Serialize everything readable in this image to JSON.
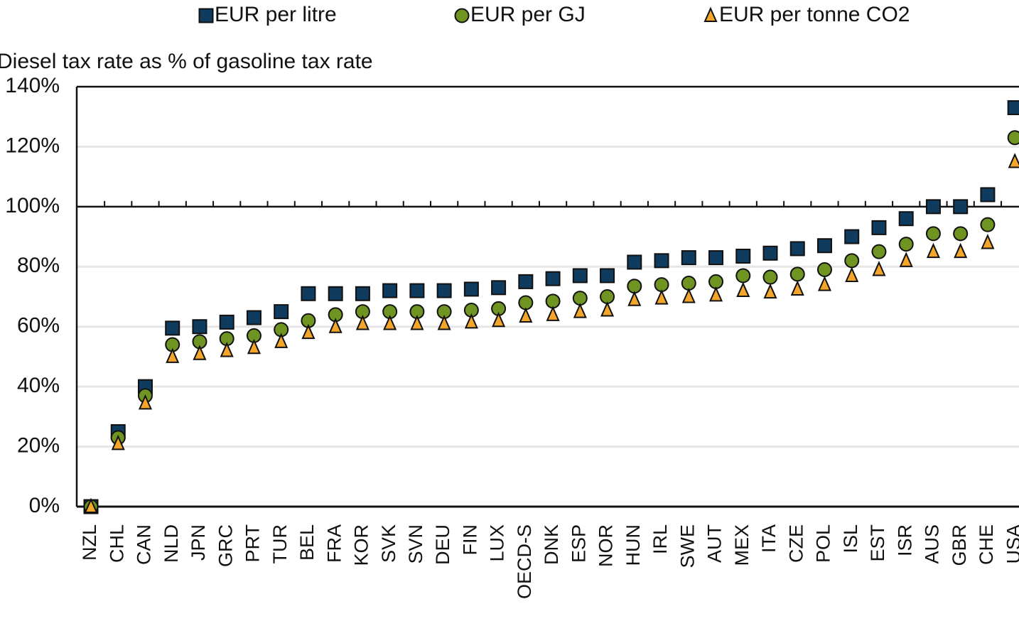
{
  "chart_data": {
    "type": "scatter",
    "ylabel": "Diesel tax rate as % of gasoline tax rate",
    "categories": [
      "NZL",
      "CHL",
      "CAN",
      "NLD",
      "JPN",
      "GRC",
      "PRT",
      "TUR",
      "BEL",
      "FRA",
      "KOR",
      "SVK",
      "SVN",
      "DEU",
      "FIN",
      "LUX",
      "OECD-S",
      "DNK",
      "ESP",
      "NOR",
      "HUN",
      "IRL",
      "SWE",
      "AUT",
      "MEX",
      "ITA",
      "CZE",
      "POL",
      "ISL",
      "EST",
      "ISR",
      "AUS",
      "GBR",
      "CHE",
      "USA"
    ],
    "series": [
      {
        "name": "EUR per litre",
        "color": "#0f3b5f",
        "marker": "square",
        "values": [
          0,
          25,
          40,
          59.5,
          60,
          61.5,
          63,
          65,
          71,
          71,
          71,
          72,
          72,
          72,
          72.5,
          73,
          75,
          76,
          77,
          77,
          81.5,
          82,
          83,
          83,
          83.5,
          84.5,
          86,
          87,
          90,
          93,
          96,
          100,
          100,
          104,
          133
        ]
      },
      {
        "name": "EUR per GJ",
        "color": "#6f9421",
        "marker": "circle",
        "values": [
          0,
          23,
          37,
          54,
          55,
          56,
          57,
          59,
          62,
          64,
          65,
          65,
          65,
          65,
          65.5,
          66,
          68,
          68.5,
          69.5,
          70,
          73.5,
          74,
          74.5,
          75,
          77,
          76.5,
          77.5,
          79,
          82,
          85,
          87.5,
          91,
          91,
          94,
          123
        ]
      },
      {
        "name": "EUR per tonne CO2",
        "color": "#f4a62a",
        "marker": "triangle",
        "values": [
          0,
          21,
          34.5,
          50,
          51,
          52,
          53,
          55,
          58,
          60,
          61,
          61,
          61,
          61,
          61.5,
          62,
          63.5,
          64,
          65,
          65.5,
          69,
          69.5,
          70,
          70.5,
          72,
          71.5,
          72.5,
          74,
          77,
          79,
          82,
          85,
          85,
          88,
          115
        ]
      }
    ],
    "ylim": [
      0,
      140
    ],
    "yticks": [
      {
        "value": 0,
        "label": "0%"
      },
      {
        "value": 20,
        "label": "20%"
      },
      {
        "value": 40,
        "label": "40%"
      },
      {
        "value": 60,
        "label": "60%"
      },
      {
        "value": 80,
        "label": "80%"
      },
      {
        "value": 100,
        "label": "100%"
      },
      {
        "value": 120,
        "label": "120%"
      },
      {
        "value": 140,
        "label": "140%"
      }
    ],
    "reference_line": 100,
    "grid": true
  }
}
